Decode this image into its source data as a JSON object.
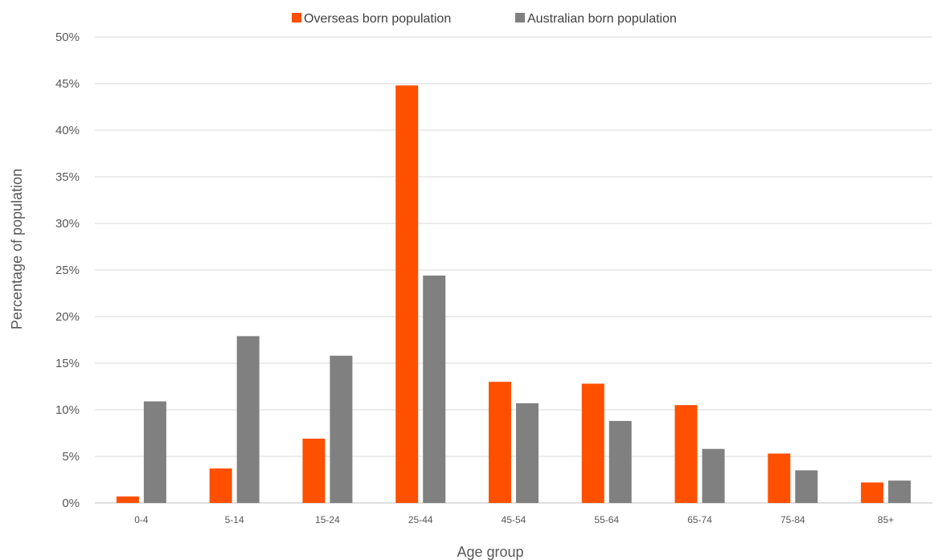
{
  "chart_data": {
    "type": "bar",
    "title": "",
    "xlabel": "Age group",
    "ylabel": "Percentage of population",
    "categories": [
      "0-4",
      "5-14",
      "15-24",
      "25-44",
      "45-54",
      "55-64",
      "65-74",
      "75-84",
      "85+"
    ],
    "series": [
      {
        "name": "Overseas born population",
        "color": "#ff5000",
        "values": [
          0.7,
          3.7,
          6.9,
          44.8,
          13.0,
          12.8,
          10.5,
          5.3,
          2.2
        ]
      },
      {
        "name": "Australian born population",
        "color": "#808080",
        "values": [
          10.9,
          17.9,
          15.8,
          24.4,
          10.7,
          8.8,
          5.8,
          3.5,
          2.4
        ]
      }
    ],
    "ylim": [
      0,
      50
    ],
    "yticks": [
      0,
      5,
      10,
      15,
      20,
      25,
      30,
      35,
      40,
      45,
      50
    ],
    "ytick_labels": [
      "0%",
      "5%",
      "10%",
      "15%",
      "20%",
      "25%",
      "30%",
      "35%",
      "40%",
      "45%",
      "50%"
    ],
    "grid": true,
    "legend_position": "top-center"
  },
  "colors": {
    "gridline": "#d9d9d9",
    "axis": "#bfbfbf"
  }
}
